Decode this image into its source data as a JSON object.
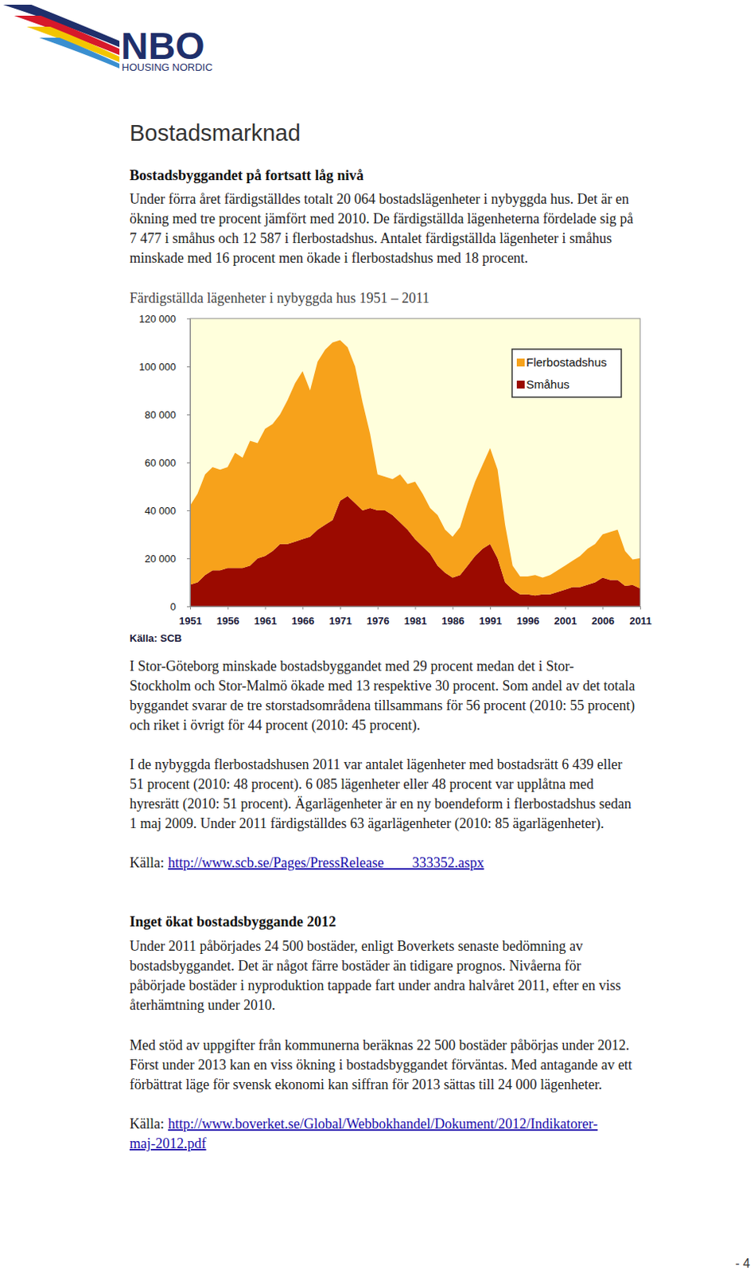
{
  "logo": {
    "name": "NBO",
    "tagline": "HOUSING NORDIC"
  },
  "heading": "Bostadsmarknad",
  "section_1": {
    "title": "Bostadsbyggandet på fortsatt låg nivå",
    "paragraphs": [
      [
        "Under förra året färdigställdes totalt 20 064 bostadslägenheter i nybyggda hus. Det är en",
        "ökning med tre procent jämfört med 2010. De färdigställda lägenheterna fördelade sig på",
        "7 477 i småhus och 12 587 i flerbostadshus. Antalet färdigställda lägenheter i småhus",
        "minskade med 16 procent men ökade i flerbostadshus med 18 procent."
      ],
      [
        "I Stor-Göteborg minskade bostadsbyggandet med 29 procent medan det i Stor-",
        "Stockholm och Stor-Malmö ökade med 13 respektive 30 procent. Som andel av det totala",
        "byggandet svarar de tre storstadsområdena tillsammans för 56 procent (2010: 55 procent)",
        "och riket i övrigt för 44 procent (2010: 45 procent)."
      ],
      [
        "I de nybyggda flerbostadshusen 2011 var antalet lägenheter med bostadsrätt 6 439 eller",
        "51 procent (2010: 48 procent). 6 085 lägenheter eller 48 procent var upplåtna med",
        "hyresrätt (2010: 51 procent). Ägarlägenheter är en ny boendeform i flerbostadshus sedan",
        "1 maj 2009. Under 2011 färdigställdes 63 ägarlägenheter (2010: 85 ägarlägenheter)."
      ]
    ],
    "source_label": "Källa:",
    "source_link": [
      "http://www.scb.se/Pages/PressRelease____333352.aspx"
    ]
  },
  "chart_data": {
    "type": "area",
    "title": "Färdigställda lägenheter i nybyggda hus 1951 – 2011",
    "source": "Källa: SCB",
    "stacked": true,
    "grid": false,
    "legend": "upper right",
    "x": [
      1951,
      1952,
      1953,
      1954,
      1955,
      1956,
      1957,
      1958,
      1959,
      1960,
      1961,
      1962,
      1963,
      1964,
      1965,
      1966,
      1967,
      1968,
      1969,
      1970,
      1971,
      1972,
      1973,
      1974,
      1975,
      1976,
      1977,
      1978,
      1979,
      1980,
      1981,
      1982,
      1983,
      1984,
      1985,
      1986,
      1987,
      1988,
      1989,
      1990,
      1991,
      1992,
      1993,
      1994,
      1995,
      1996,
      1997,
      1998,
      1999,
      2000,
      2001,
      2002,
      2003,
      2004,
      2005,
      2006,
      2007,
      2008,
      2009,
      2010,
      2011
    ],
    "xlim": [
      1951,
      2011
    ],
    "xticks": [
      1951,
      1956,
      1961,
      1966,
      1971,
      1976,
      1981,
      1986,
      1991,
      1996,
      2001,
      2006,
      2011
    ],
    "ylim": [
      0,
      120000
    ],
    "yticks": [
      0,
      {
        "value": 20000,
        "label": "20 000"
      },
      {
        "value": 40000,
        "label": "40 000"
      },
      {
        "value": 60000,
        "label": "60 000"
      },
      {
        "value": 80000,
        "label": "80 000"
      },
      {
        "value": 100000,
        "label": "100 000"
      },
      {
        "value": 120000,
        "label": "120 000"
      }
    ],
    "series": [
      {
        "name": "Flerbostadshus",
        "color": "#f7a21b",
        "values": [
          33000,
          37000,
          42000,
          43000,
          42000,
          42000,
          48000,
          46000,
          52000,
          48000,
          53000,
          53000,
          54000,
          60000,
          66000,
          70000,
          61000,
          70000,
          73000,
          74000,
          67000,
          62000,
          57000,
          45000,
          31000,
          15000,
          14000,
          15000,
          20000,
          19000,
          24000,
          22000,
          19000,
          21000,
          18000,
          17000,
          20000,
          26000,
          31000,
          35000,
          40000,
          37000,
          24000,
          10000,
          7500,
          7500,
          8500,
          7000,
          8000,
          9000,
          10000,
          11000,
          13000,
          15000,
          16000,
          18000,
          20000,
          21000,
          14500,
          10600,
          12587
        ]
      },
      {
        "name": "Småhus",
        "color": "#9b0a00",
        "values": [
          9000,
          10000,
          13000,
          15000,
          15000,
          16000,
          16000,
          16000,
          17000,
          20000,
          21000,
          23000,
          26000,
          26000,
          27000,
          28000,
          29000,
          32000,
          34000,
          36000,
          44000,
          46000,
          43000,
          40000,
          41000,
          40000,
          40000,
          38000,
          35000,
          32000,
          28000,
          25000,
          22000,
          17000,
          14000,
          12000,
          13000,
          17000,
          21000,
          24000,
          26000,
          20000,
          10000,
          7000,
          5000,
          5000,
          4500,
          5000,
          5000,
          6000,
          7000,
          8000,
          8000,
          9000,
          10000,
          12000,
          11000,
          11000,
          8500,
          8900,
          7477
        ]
      }
    ]
  },
  "section_2": {
    "title": "Inget ökat bostadsbyggande 2012",
    "paragraphs": [
      [
        "Under 2011 påbörjades 24 500 bostäder, enligt Boverkets senaste bedömning av",
        "bostadsbyggandet. Det är något färre bostäder än tidigare prognos. Nivåerna för",
        "påbörjade bostäder i nyproduktion tappade fart under andra halvåret 2011, efter en viss",
        "återhämtning under 2010."
      ],
      [
        "Med stöd av uppgifter från kommunerna beräknas 22 500 bostäder påbörjas under 2012.",
        "Först under 2013 kan en viss ökning i bostadsbyggandet förväntas. Med antagande av ett",
        "förbättrat läge för svensk ekonomi kan siffran för 2013 sättas till 24 000 lägenheter."
      ]
    ],
    "source_label": "Källa:",
    "source_link": [
      "http://www.boverket.se/Global/Webbokhandel/Dokument/2012/Indikatorer-",
      "maj-2012.pdf"
    ]
  },
  "page_number": "- 4"
}
